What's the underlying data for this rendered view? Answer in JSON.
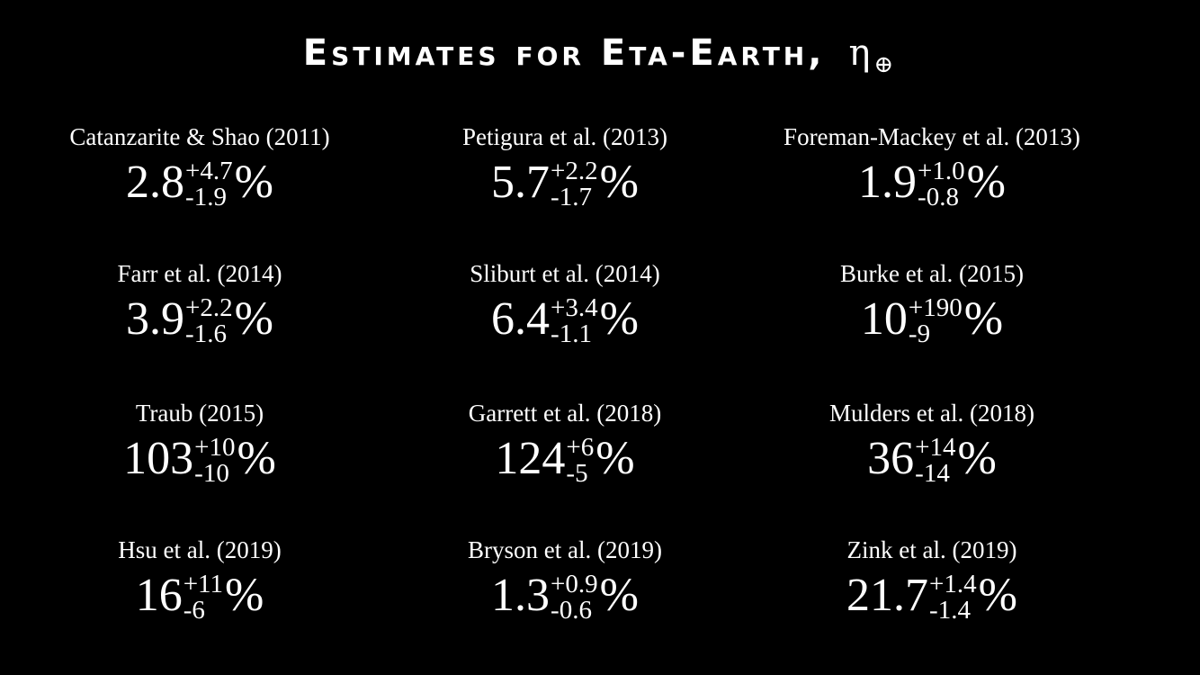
{
  "title": {
    "text": "Estimates for Eta-Earth,",
    "symbol": "η",
    "symbol_sub": "⊕"
  },
  "estimates": [
    {
      "label": "Catanzarite & Shao (2011)",
      "value": "2.8",
      "plus": "+4.7",
      "minus": "-1.9",
      "unit": "%"
    },
    {
      "label": "Petigura et al. (2013)",
      "value": "5.7",
      "plus": "+2.2",
      "minus": "-1.7",
      "unit": "%"
    },
    {
      "label": "Foreman-Mackey et al. (2013)",
      "value": "1.9",
      "plus": "+1.0",
      "minus": "-0.8",
      "unit": "%"
    },
    {
      "label": "Farr et al. (2014)",
      "value": "3.9",
      "plus": "+2.2",
      "minus": "-1.6",
      "unit": "%"
    },
    {
      "label": "Sliburt et al. (2014)",
      "value": "6.4",
      "plus": "+3.4",
      "minus": "-1.1",
      "unit": "%"
    },
    {
      "label": "Burke et al. (2015)",
      "value": "10",
      "plus": "+190",
      "minus": "-9",
      "unit": "%"
    },
    {
      "label": "Traub (2015)",
      "value": "103",
      "plus": "+10",
      "minus": "-10",
      "unit": "%"
    },
    {
      "label": "Garrett et al. (2018)",
      "value": "124",
      "plus": "+6",
      "minus": "-5",
      "unit": "%"
    },
    {
      "label": "Mulders et al. (2018)",
      "value": "36",
      "plus": "+14",
      "minus": "-14",
      "unit": "%"
    },
    {
      "label": "Hsu et al. (2019)",
      "value": "16",
      "plus": "+11",
      "minus": "-6",
      "unit": "%"
    },
    {
      "label": "Bryson et al. (2019)",
      "value": "1.3",
      "plus": "+0.9",
      "minus": "-0.6",
      "unit": "%"
    },
    {
      "label": "Zink et al. (2019)",
      "value": "21.7",
      "plus": "+1.4",
      "minus": "-1.4",
      "unit": "%"
    }
  ]
}
